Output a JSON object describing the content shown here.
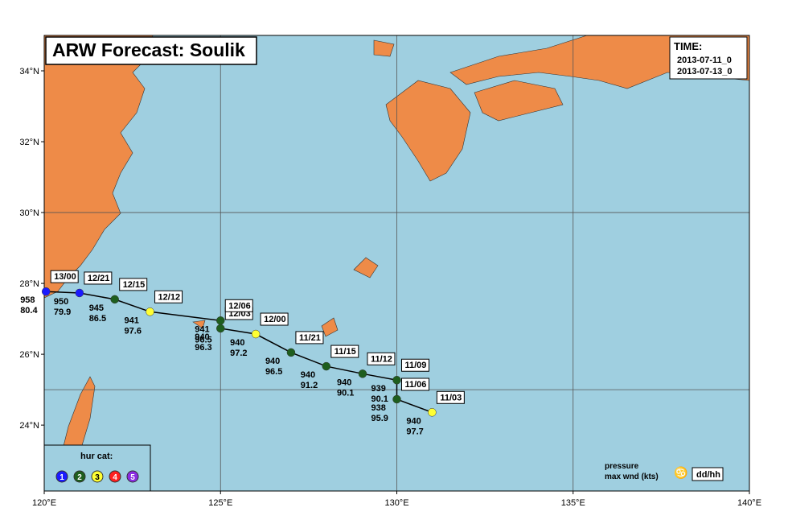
{
  "title": "ARW Forecast: Soulik",
  "time_box": {
    "label": "TIME:",
    "start": "2013-07-11_0",
    "end": "2013-07-13_0"
  },
  "map": {
    "xlim": [
      120,
      140
    ],
    "ylim": [
      22.14,
      35
    ],
    "xticks": [
      {
        "value": 120,
        "label": "120°E"
      },
      {
        "value": 125,
        "label": "125°E"
      },
      {
        "value": 130,
        "label": "130°E"
      },
      {
        "value": 135,
        "label": "135°E"
      },
      {
        "value": 140,
        "label": "140°E"
      }
    ],
    "yticks": [
      {
        "value": 24,
        "label": "24°N"
      },
      {
        "value": 26,
        "label": "26°N"
      },
      {
        "value": 28,
        "label": "28°N"
      },
      {
        "value": 30,
        "label": "30°N"
      },
      {
        "value": 32,
        "label": "32°N"
      },
      {
        "value": 34,
        "label": "34°N"
      }
    ],
    "lon_grid": [
      125,
      130,
      135
    ],
    "lat_grid": [
      25,
      30
    ]
  },
  "track": [
    {
      "time": "11/03",
      "lon": 131.0,
      "lat": 24.36,
      "pressure": 940,
      "wind": 97.7,
      "category": 3
    },
    {
      "time": "11/06",
      "lon": 130.0,
      "lat": 24.73,
      "pressure": 938,
      "wind": 95.9,
      "category": 2
    },
    {
      "time": "11/09",
      "lon": 130.0,
      "lat": 25.27,
      "pressure": 939,
      "wind": 90.1,
      "category": 2
    },
    {
      "time": "11/12",
      "lon": 129.03,
      "lat": 25.45,
      "pressure": 940,
      "wind": 90.1,
      "category": 2
    },
    {
      "time": "11/15",
      "lon": 128.0,
      "lat": 25.66,
      "pressure": 940,
      "wind": 91.2,
      "category": 2
    },
    {
      "time": "11/21",
      "lon": 127.0,
      "lat": 26.05,
      "pressure": 940,
      "wind": 96.5,
      "category": 2
    },
    {
      "time": "12/00",
      "lon": 126.0,
      "lat": 26.57,
      "pressure": 940,
      "wind": 97.2,
      "category": 3
    },
    {
      "time": "12/03",
      "lon": 125.0,
      "lat": 26.73,
      "pressure": 940,
      "wind": 96.3,
      "category": 2
    },
    {
      "time": "12/06",
      "lon": 125.0,
      "lat": 26.95,
      "pressure": 941,
      "wind": 96.5,
      "category": 2
    },
    {
      "time": "12/12",
      "lon": 123.0,
      "lat": 27.2,
      "pressure": 941,
      "wind": 97.6,
      "category": 3
    },
    {
      "time": "12/15",
      "lon": 122.0,
      "lat": 27.55,
      "pressure": 945,
      "wind": 86.5,
      "category": 2
    },
    {
      "time": "12/21",
      "lon": 121.0,
      "lat": 27.73,
      "pressure": 950,
      "wind": 79.9,
      "category": 1
    },
    {
      "time": "13/00",
      "lon": 120.05,
      "lat": 27.77,
      "pressure": 958,
      "wind": 80.4,
      "category": 1
    }
  ],
  "legend": {
    "title": "hur cat:",
    "categories": [
      {
        "label": "1",
        "color": "#1a1aff"
      },
      {
        "label": "2",
        "color": "#1e5e1e"
      },
      {
        "label": "3",
        "color": "#ffff33"
      },
      {
        "label": "4",
        "color": "#ff2020"
      },
      {
        "label": "5",
        "color": "#8a2be2"
      }
    ],
    "key_pressure": "pressure",
    "key_wind": "max wnd (kts)",
    "key_time": "dd/hh"
  }
}
